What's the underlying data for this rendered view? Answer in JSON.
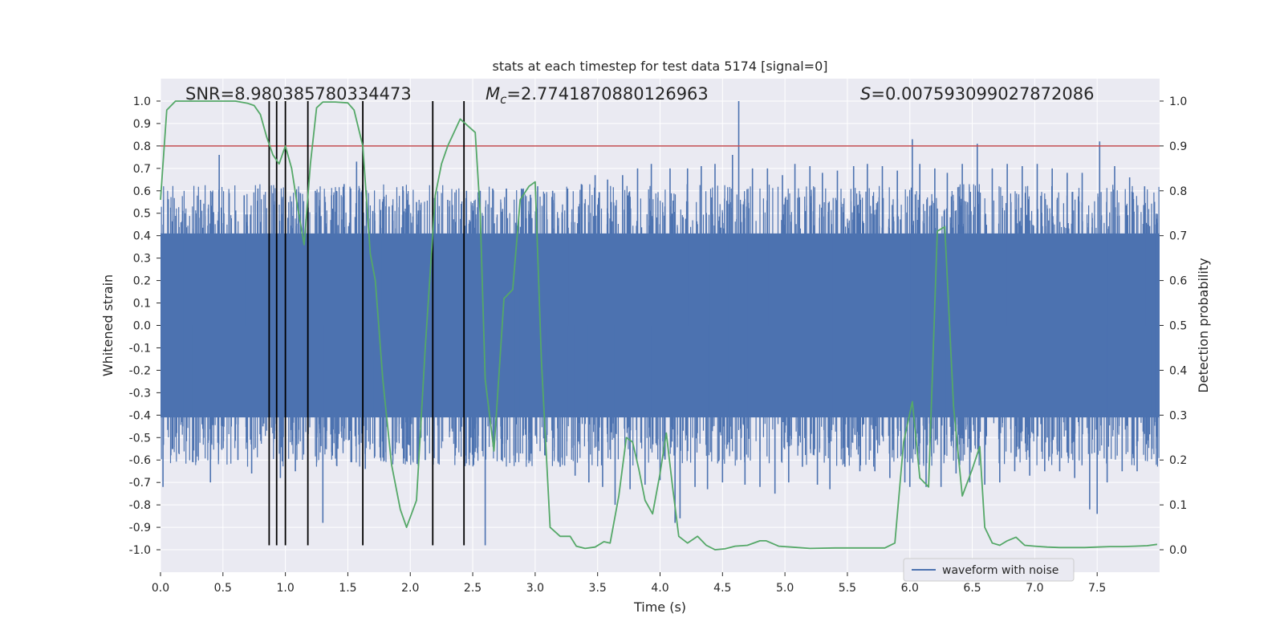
{
  "chart_data": {
    "type": "line",
    "title": "stats at each timestep for test data 5174 [signal=0]",
    "xlabel": "Time (s)",
    "ylabel": "Whitened strain",
    "y2label": "Detection probability",
    "xlim": [
      0.0,
      8.0
    ],
    "ylim": [
      -1.1,
      1.1
    ],
    "y2lim": [
      -0.05,
      1.05
    ],
    "xticks": [
      "0.0",
      "0.5",
      "1.0",
      "1.5",
      "2.0",
      "2.5",
      "3.0",
      "3.5",
      "4.0",
      "4.5",
      "5.0",
      "5.5",
      "6.0",
      "6.5",
      "7.0",
      "7.5"
    ],
    "yticks": [
      "1.0",
      "0.9",
      "0.8",
      "0.7",
      "0.6",
      "0.5",
      "0.4",
      "0.3",
      "0.2",
      "0.1",
      "0.0",
      "-0.1",
      "-0.2",
      "-0.3",
      "-0.4",
      "-0.5",
      "-0.6",
      "-0.7",
      "-0.8",
      "-0.9",
      "-1.0"
    ],
    "y2ticks": [
      "1.0",
      "0.9",
      "0.8",
      "0.7",
      "0.6",
      "0.5",
      "0.4",
      "0.3",
      "0.2",
      "0.1",
      "0.0"
    ],
    "annotations": {
      "snr": "SNR=8.980385780334473",
      "mc_symbol": "M",
      "mc_sub": "c",
      "mc_value": "=2.7741870880126963",
      "s_symbol": "S",
      "s_value": "=0.007593099027872086"
    },
    "threshold": {
      "value": 0.9,
      "axis": "right",
      "color": "#c44e52"
    },
    "vlines": [
      0.87,
      0.93,
      1.0,
      1.18,
      1.62,
      2.18,
      2.43
    ],
    "vline_range": [
      -0.98,
      1.0
    ],
    "waveform": {
      "name": "waveform with noise",
      "color": "#4c72b0",
      "core_band": 0.41,
      "spikes": [
        [
          0.02,
          -0.72
        ],
        [
          0.06,
          0.44
        ],
        [
          0.13,
          -0.48
        ],
        [
          0.2,
          0.5
        ],
        [
          0.26,
          -0.61
        ],
        [
          0.32,
          0.56
        ],
        [
          0.4,
          -0.7
        ],
        [
          0.47,
          0.76
        ],
        [
          0.5,
          -0.45
        ],
        [
          0.55,
          0.59
        ],
        [
          0.62,
          -0.6
        ],
        [
          0.67,
          0.58
        ],
        [
          0.73,
          -0.66
        ],
        [
          0.78,
          0.61
        ],
        [
          0.82,
          -0.45
        ],
        [
          0.87,
          0.62
        ],
        [
          0.93,
          0.6
        ],
        [
          0.96,
          -0.68
        ],
        [
          1.02,
          0.48
        ],
        [
          1.08,
          -0.65
        ],
        [
          1.12,
          0.59
        ],
        [
          1.18,
          -0.55
        ],
        [
          1.24,
          0.6
        ],
        [
          1.3,
          -0.88
        ],
        [
          1.37,
          0.58
        ],
        [
          1.42,
          -0.55
        ],
        [
          1.47,
          0.63
        ],
        [
          1.53,
          -0.61
        ],
        [
          1.57,
          0.73
        ],
        [
          1.64,
          -0.64
        ],
        [
          1.7,
          0.51
        ],
        [
          1.76,
          -0.59
        ],
        [
          1.83,
          0.53
        ],
        [
          1.88,
          -0.55
        ],
        [
          1.94,
          0.62
        ],
        [
          2.0,
          -0.58
        ],
        [
          2.05,
          0.55
        ],
        [
          2.12,
          -0.6
        ],
        [
          2.2,
          0.57
        ],
        [
          2.3,
          0.56
        ],
        [
          2.36,
          -0.58
        ],
        [
          2.45,
          0.6
        ],
        [
          2.51,
          -0.59
        ],
        [
          2.56,
          0.6
        ],
        [
          2.6,
          -0.98
        ],
        [
          2.66,
          0.61
        ],
        [
          2.73,
          -0.6
        ],
        [
          2.77,
          0.61
        ],
        [
          2.83,
          -0.58
        ],
        [
          2.89,
          0.61
        ],
        [
          2.95,
          -0.6
        ],
        [
          3.02,
          0.62
        ],
        [
          3.08,
          -0.58
        ],
        [
          3.14,
          0.6
        ],
        [
          3.2,
          -0.63
        ],
        [
          3.26,
          0.61
        ],
        [
          3.32,
          -0.67
        ],
        [
          3.37,
          0.63
        ],
        [
          3.43,
          -0.7
        ],
        [
          3.48,
          0.67
        ],
        [
          3.54,
          -0.72
        ],
        [
          3.58,
          0.65
        ],
        [
          3.64,
          -0.8
        ],
        [
          3.7,
          0.67
        ],
        [
          3.76,
          -0.73
        ],
        [
          3.82,
          0.7
        ],
        [
          3.88,
          -0.71
        ],
        [
          3.93,
          0.72
        ],
        [
          4.0,
          -0.69
        ],
        [
          4.08,
          0.7
        ],
        [
          4.12,
          -0.88
        ],
        [
          4.16,
          -0.86
        ],
        [
          4.22,
          0.7
        ],
        [
          4.28,
          -0.72
        ],
        [
          4.33,
          0.71
        ],
        [
          4.38,
          -0.73
        ],
        [
          4.44,
          0.72
        ],
        [
          4.5,
          -0.7
        ],
        [
          4.58,
          0.76
        ],
        [
          4.63,
          1.0
        ],
        [
          4.68,
          -0.71
        ],
        [
          4.74,
          0.7
        ],
        [
          4.8,
          -0.72
        ],
        [
          4.86,
          0.7
        ],
        [
          4.92,
          -0.75
        ],
        [
          4.98,
          0.67
        ],
        [
          5.03,
          -0.7
        ],
        [
          5.08,
          0.72
        ],
        [
          5.14,
          -0.63
        ],
        [
          5.2,
          0.71
        ],
        [
          5.26,
          -0.71
        ],
        [
          5.3,
          0.68
        ],
        [
          5.36,
          -0.73
        ],
        [
          5.42,
          0.69
        ],
        [
          5.48,
          -0.63
        ],
        [
          5.55,
          0.71
        ],
        [
          5.6,
          -0.65
        ],
        [
          5.66,
          0.72
        ],
        [
          5.72,
          -0.65
        ],
        [
          5.78,
          0.71
        ],
        [
          5.84,
          -0.68
        ],
        [
          5.9,
          0.69
        ],
        [
          5.96,
          -0.7
        ],
        [
          6.0,
          -0.72
        ],
        [
          6.02,
          0.83
        ],
        [
          6.08,
          0.72
        ],
        [
          6.13,
          -0.72
        ],
        [
          6.2,
          0.7
        ],
        [
          6.25,
          -0.72
        ],
        [
          6.3,
          0.68
        ],
        [
          6.37,
          -0.66
        ],
        [
          6.42,
          0.72
        ],
        [
          6.48,
          -0.7
        ],
        [
          6.54,
          0.81
        ],
        [
          6.6,
          -0.71
        ],
        [
          6.66,
          0.7
        ],
        [
          6.72,
          -0.7
        ],
        [
          6.78,
          0.72
        ],
        [
          6.84,
          -0.65
        ],
        [
          6.9,
          0.71
        ],
        [
          6.96,
          -0.67
        ],
        [
          7.02,
          0.72
        ],
        [
          7.08,
          -0.65
        ],
        [
          7.14,
          0.7
        ],
        [
          7.2,
          -0.65
        ],
        [
          7.26,
          0.68
        ],
        [
          7.32,
          -0.68
        ],
        [
          7.38,
          0.68
        ],
        [
          7.44,
          -0.82
        ],
        [
          7.5,
          -0.84
        ],
        [
          7.52,
          0.82
        ],
        [
          7.58,
          -0.7
        ],
        [
          7.64,
          0.71
        ],
        [
          7.7,
          -0.65
        ],
        [
          7.76,
          0.66
        ],
        [
          7.82,
          -0.65
        ],
        [
          7.88,
          0.62
        ],
        [
          7.94,
          -0.55
        ]
      ]
    },
    "probability": {
      "name": "Detection probability",
      "color": "#55a868",
      "x": [
        0.0,
        0.05,
        0.12,
        0.2,
        0.3,
        0.4,
        0.5,
        0.6,
        0.7,
        0.75,
        0.8,
        0.85,
        0.9,
        0.95,
        1.0,
        1.05,
        1.1,
        1.15,
        1.2,
        1.25,
        1.3,
        1.4,
        1.5,
        1.55,
        1.62,
        1.68,
        1.72,
        1.78,
        1.85,
        1.92,
        1.97,
        2.05,
        2.12,
        2.2,
        2.25,
        2.3,
        2.35,
        2.4,
        2.46,
        2.52,
        2.56,
        2.6,
        2.67,
        2.75,
        2.82,
        2.88,
        2.95,
        3.0,
        3.05,
        3.12,
        3.2,
        3.28,
        3.33,
        3.4,
        3.48,
        3.55,
        3.6,
        3.67,
        3.73,
        3.78,
        3.83,
        3.88,
        3.94,
        4.0,
        4.05,
        4.1,
        4.15,
        4.22,
        4.3,
        4.37,
        4.44,
        4.52,
        4.6,
        4.7,
        4.8,
        4.85,
        4.95,
        5.05,
        5.2,
        5.4,
        5.6,
        5.8,
        5.88,
        5.95,
        6.02,
        6.08,
        6.15,
        6.22,
        6.28,
        6.35,
        6.42,
        6.5,
        6.56,
        6.6,
        6.66,
        6.72,
        6.78,
        6.85,
        6.92,
        7.0,
        7.1,
        7.2,
        7.3,
        7.4,
        7.5,
        7.6,
        7.7,
        7.8,
        7.9,
        7.98
      ],
      "y": [
        0.78,
        0.98,
        1.0,
        1.0,
        1.0,
        1.0,
        1.0,
        1.0,
        0.995,
        0.99,
        0.97,
        0.92,
        0.88,
        0.86,
        0.9,
        0.85,
        0.76,
        0.68,
        0.86,
        0.985,
        0.998,
        0.998,
        0.996,
        0.98,
        0.9,
        0.66,
        0.6,
        0.38,
        0.19,
        0.09,
        0.05,
        0.11,
        0.45,
        0.79,
        0.86,
        0.9,
        0.93,
        0.96,
        0.945,
        0.93,
        0.75,
        0.38,
        0.22,
        0.56,
        0.58,
        0.78,
        0.81,
        0.82,
        0.42,
        0.05,
        0.03,
        0.03,
        0.008,
        0.003,
        0.006,
        0.018,
        0.015,
        0.12,
        0.25,
        0.24,
        0.18,
        0.11,
        0.08,
        0.17,
        0.26,
        0.14,
        0.03,
        0.015,
        0.03,
        0.01,
        0.0,
        0.002,
        0.008,
        0.01,
        0.02,
        0.02,
        0.008,
        0.006,
        0.003,
        0.004,
        0.004,
        0.004,
        0.015,
        0.24,
        0.33,
        0.16,
        0.14,
        0.71,
        0.72,
        0.32,
        0.12,
        0.18,
        0.23,
        0.05,
        0.015,
        0.01,
        0.02,
        0.028,
        0.01,
        0.008,
        0.006,
        0.005,
        0.005,
        0.005,
        0.006,
        0.007,
        0.007,
        0.008,
        0.009,
        0.012
      ]
    },
    "legend": {
      "label": "waveform with noise",
      "placement": "lower-right"
    }
  }
}
